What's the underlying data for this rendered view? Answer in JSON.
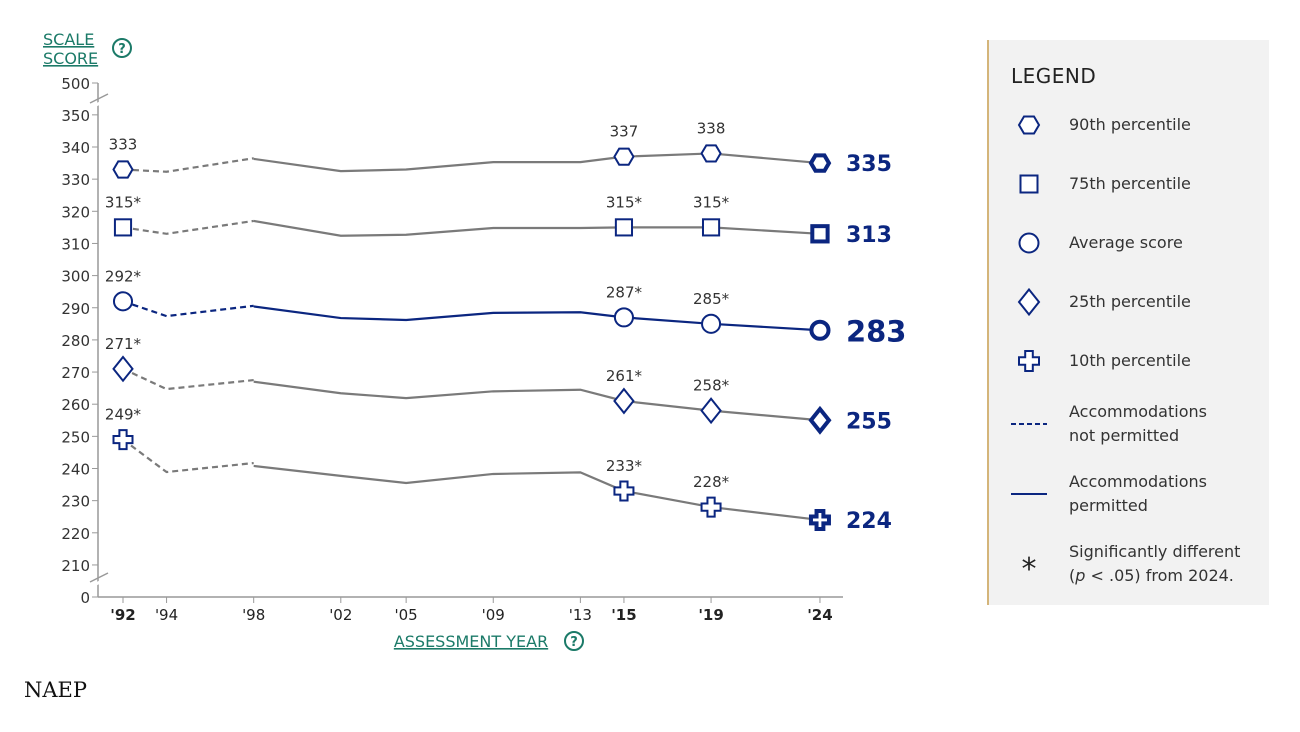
{
  "chart_data": {
    "type": "line",
    "ylabel": "SCALE SCORE",
    "xlabel": "ASSESSMENT YEAR",
    "y_ticks": [
      "500",
      "350",
      "340",
      "330",
      "320",
      "310",
      "300",
      "290",
      "280",
      "270",
      "260",
      "250",
      "240",
      "230",
      "220",
      "210",
      "0"
    ],
    "x_ticks": [
      {
        "label": "'92",
        "year": 1992,
        "bold": true
      },
      {
        "label": "'94",
        "year": 1994,
        "bold": false
      },
      {
        "label": "'98",
        "year": 1998,
        "bold": false
      },
      {
        "label": "'02",
        "year": 2002,
        "bold": false
      },
      {
        "label": "'05",
        "year": 2005,
        "bold": false
      },
      {
        "label": "'09",
        "year": 2009,
        "bold": false
      },
      {
        "label": "'13",
        "year": 2013,
        "bold": false
      },
      {
        "label": "'15",
        "year": 2015,
        "bold": true
      },
      {
        "label": "'19",
        "year": 2019,
        "bold": true
      },
      {
        "label": "'24",
        "year": 2024,
        "bold": true
      }
    ],
    "ylim": [
      210,
      350
    ],
    "axis_break": true,
    "series": [
      {
        "name": "90th percentile",
        "marker": "hexagon",
        "highlight": false,
        "not_permitted": [
          [
            1992,
            333
          ],
          [
            1994,
            332.3
          ],
          [
            1998,
            336.5
          ]
        ],
        "permitted": [
          [
            1998,
            336.3
          ],
          [
            2002,
            332.5
          ],
          [
            2005,
            333
          ],
          [
            2009,
            335.3
          ],
          [
            2013,
            335.3
          ],
          [
            2015,
            337
          ],
          [
            2019,
            338
          ],
          [
            2024,
            335
          ]
        ],
        "labels": [
          {
            "year": 1992,
            "value": 333,
            "text": "333"
          },
          {
            "year": 2015,
            "value": 337,
            "text": "337"
          },
          {
            "year": 2019,
            "value": 338,
            "text": "338"
          },
          {
            "year": 2024,
            "value": 335,
            "text": "335"
          }
        ]
      },
      {
        "name": "75th percentile",
        "marker": "square",
        "highlight": false,
        "not_permitted": [
          [
            1992,
            315
          ],
          [
            1994,
            313
          ],
          [
            1998,
            317
          ]
        ],
        "permitted": [
          [
            1998,
            317
          ],
          [
            2002,
            312.4
          ],
          [
            2005,
            312.7
          ],
          [
            2009,
            314.8
          ],
          [
            2013,
            314.8
          ],
          [
            2015,
            315
          ],
          [
            2019,
            315
          ],
          [
            2024,
            313
          ]
        ],
        "labels": [
          {
            "year": 1992,
            "value": 315,
            "text": "315*"
          },
          {
            "year": 2015,
            "value": 315,
            "text": "315*"
          },
          {
            "year": 2019,
            "value": 315,
            "text": "315*"
          },
          {
            "year": 2024,
            "value": 313,
            "text": "313"
          }
        ]
      },
      {
        "name": "Average score",
        "marker": "circle",
        "highlight": true,
        "not_permitted": [
          [
            1992,
            292
          ],
          [
            1994,
            287.4
          ],
          [
            1998,
            290.6
          ]
        ],
        "permitted": [
          [
            1998,
            290.4
          ],
          [
            2002,
            286.8
          ],
          [
            2005,
            286.2
          ],
          [
            2009,
            288.4
          ],
          [
            2013,
            288.6
          ],
          [
            2015,
            287
          ],
          [
            2019,
            285
          ],
          [
            2024,
            283
          ]
        ],
        "labels": [
          {
            "year": 1992,
            "value": 292,
            "text": "292*"
          },
          {
            "year": 2015,
            "value": 287,
            "text": "287*"
          },
          {
            "year": 2019,
            "value": 285,
            "text": "285*"
          },
          {
            "year": 2024,
            "value": 283,
            "text": "283"
          }
        ]
      },
      {
        "name": "25th percentile",
        "marker": "diamond",
        "highlight": false,
        "not_permitted": [
          [
            1992,
            271
          ],
          [
            1994,
            264.7
          ],
          [
            1998,
            267.5
          ]
        ],
        "permitted": [
          [
            1998,
            267
          ],
          [
            2002,
            263.4
          ],
          [
            2005,
            261.9
          ],
          [
            2009,
            264
          ],
          [
            2013,
            264.5
          ],
          [
            2015,
            261
          ],
          [
            2019,
            258
          ],
          [
            2024,
            255
          ]
        ],
        "labels": [
          {
            "year": 1992,
            "value": 271,
            "text": "271*"
          },
          {
            "year": 2015,
            "value": 261,
            "text": "261*"
          },
          {
            "year": 2019,
            "value": 258,
            "text": "258*"
          },
          {
            "year": 2024,
            "value": 255,
            "text": "255"
          }
        ]
      },
      {
        "name": "10th percentile",
        "marker": "cross",
        "highlight": false,
        "not_permitted": [
          [
            1992,
            249
          ],
          [
            1994,
            238.9
          ],
          [
            1998,
            241.7
          ]
        ],
        "permitted": [
          [
            1998,
            240.8
          ],
          [
            2002,
            237.7
          ],
          [
            2005,
            235.5
          ],
          [
            2009,
            238.3
          ],
          [
            2013,
            238.8
          ],
          [
            2015,
            233
          ],
          [
            2019,
            228
          ],
          [
            2024,
            224
          ]
        ],
        "labels": [
          {
            "year": 1992,
            "value": 249,
            "text": "249*"
          },
          {
            "year": 2015,
            "value": 233,
            "text": "233*"
          },
          {
            "year": 2019,
            "value": 228,
            "text": "228*"
          },
          {
            "year": 2024,
            "value": 224,
            "text": "224"
          }
        ]
      }
    ],
    "colors": {
      "navy": "#0b2680",
      "gray": "#7a7a7a",
      "teal": "#1b7a68",
      "axis": "#999999"
    }
  },
  "legend": {
    "title": "LEGEND",
    "items": [
      {
        "symbol": "hexagon",
        "label": "90th percentile"
      },
      {
        "symbol": "square",
        "label": "75th percentile"
      },
      {
        "symbol": "circle",
        "label": "Average score"
      },
      {
        "symbol": "diamond",
        "label": "25th percentile"
      },
      {
        "symbol": "cross",
        "label": "10th percentile"
      },
      {
        "symbol": "dashed",
        "label": "Accommodations not permitted"
      },
      {
        "symbol": "solid",
        "label": "Accommodations permitted"
      },
      {
        "symbol": "asterisk",
        "label": "Significantly different (p < .05) from 2024.",
        "label_parts": [
          "Significantly different",
          "(",
          "p",
          " < .05) from 2024."
        ]
      }
    ]
  },
  "footer": "NAEP"
}
